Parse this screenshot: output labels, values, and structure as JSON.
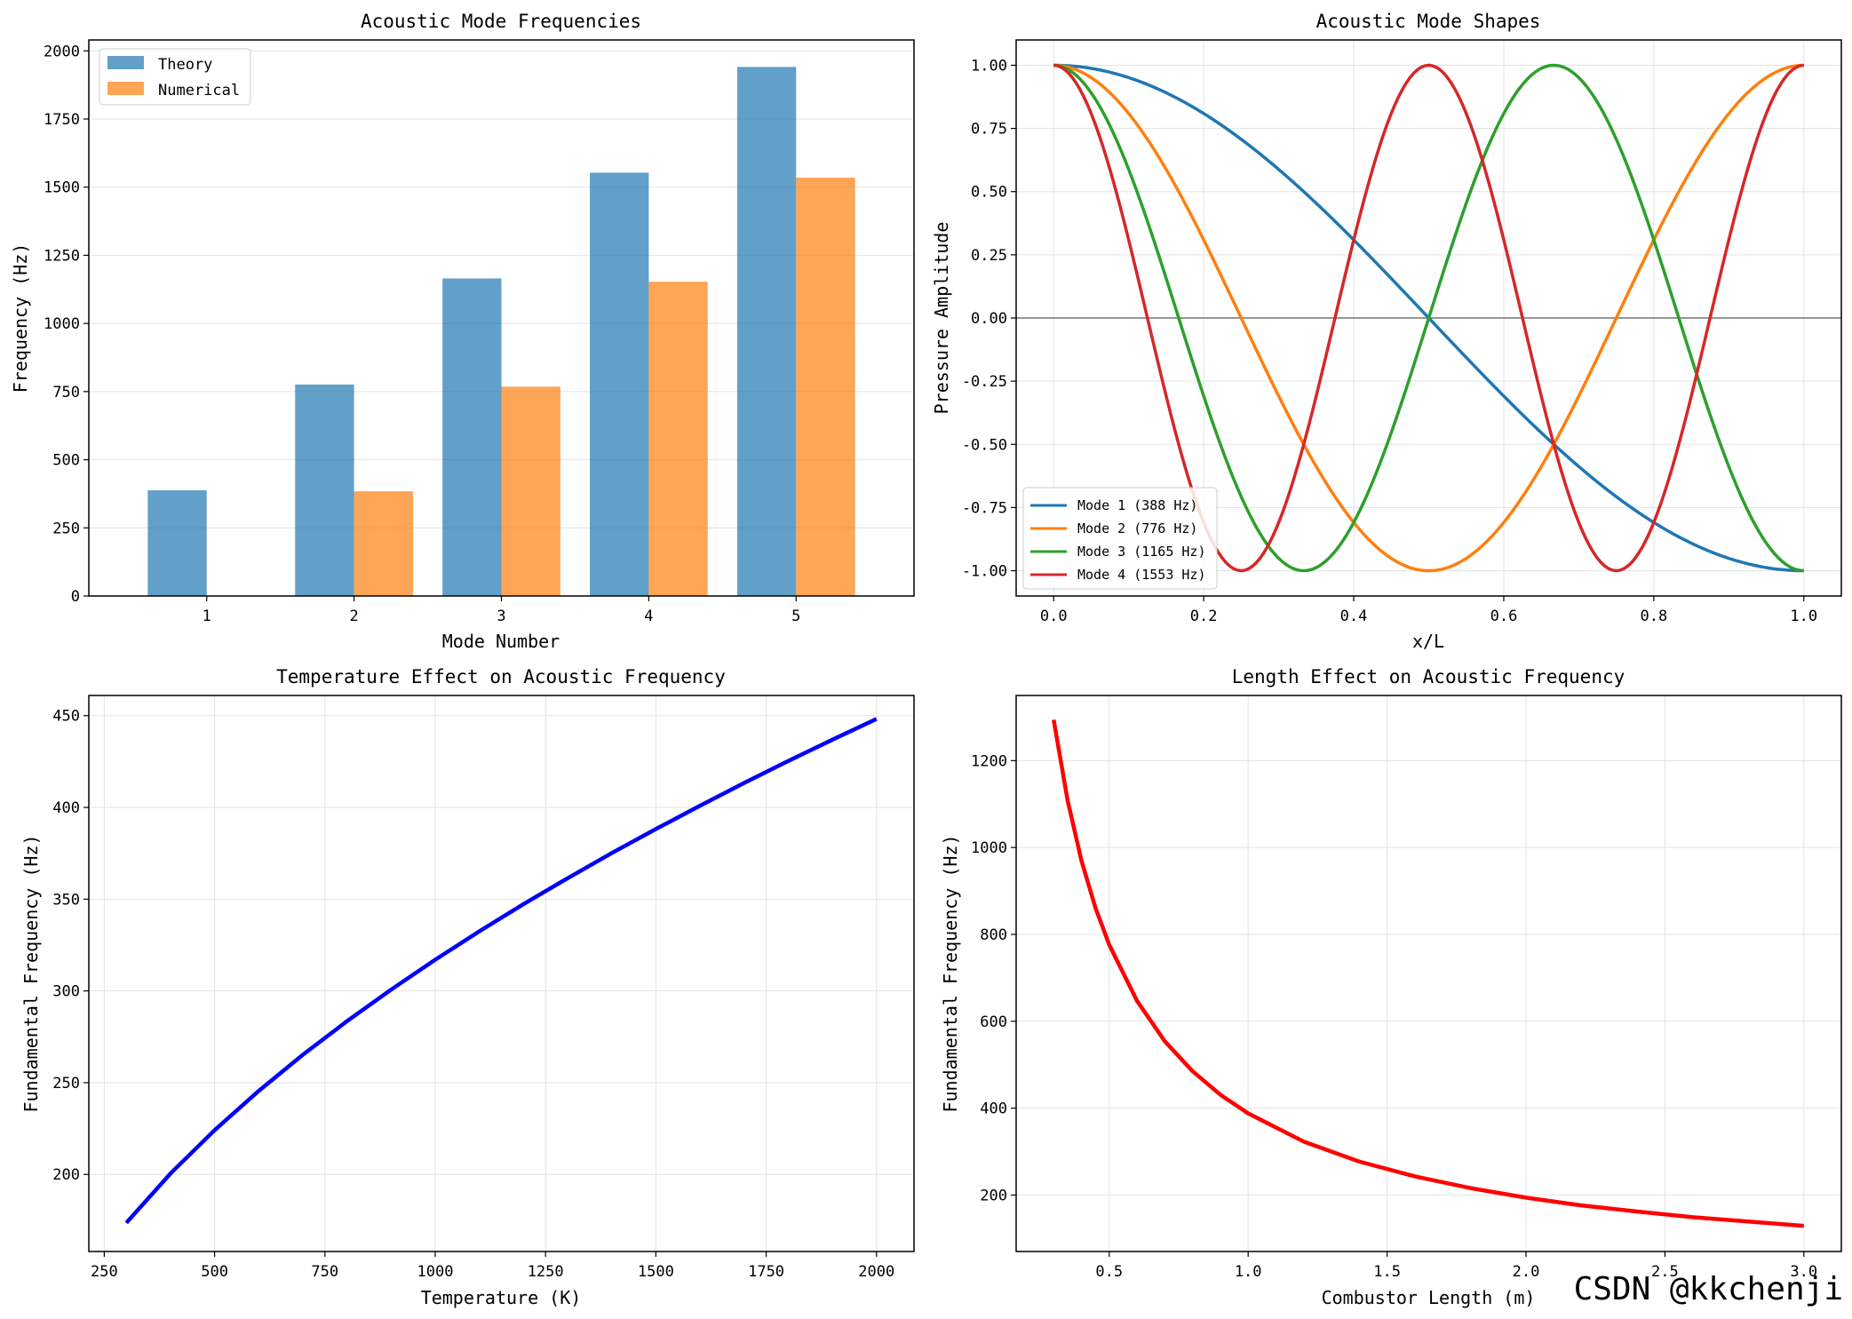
{
  "watermark": "CSDN @kkchenji",
  "chart_data": [
    {
      "type": "bar",
      "title": "Acoustic Mode Frequencies",
      "xlabel": "Mode Number",
      "ylabel": "Frequency (Hz)",
      "categories": [
        "1",
        "2",
        "3",
        "4",
        "5"
      ],
      "series": [
        {
          "name": "Theory",
          "values": [
            388,
            776,
            1165,
            1553,
            1941
          ],
          "color": "#1f77b4"
        },
        {
          "name": "Numerical",
          "values": [
            0,
            384,
            768,
            1153,
            1535
          ],
          "color": "#ff7f0e"
        }
      ],
      "ylim": [
        0,
        2040
      ],
      "yticks": [
        0,
        250,
        500,
        750,
        1000,
        1250,
        1500,
        1750,
        2000
      ],
      "ytick_labels": [
        "0",
        "250",
        "500",
        "750",
        "1000",
        "1250",
        "1500",
        "1750",
        "2000"
      ],
      "legend": "top-left",
      "grid": true
    },
    {
      "type": "line",
      "title": "Acoustic Mode Shapes",
      "xlabel": "x/L",
      "ylabel": "Pressure Amplitude",
      "xlim": [
        -0.05,
        1.05
      ],
      "ylim": [
        -1.1,
        1.1
      ],
      "xticks": [
        0.0,
        0.2,
        0.4,
        0.6,
        0.8,
        1.0
      ],
      "xtick_labels": [
        "0.0",
        "0.2",
        "0.4",
        "0.6",
        "0.8",
        "1.0"
      ],
      "yticks": [
        1.0,
        0.75,
        0.5,
        0.25,
        0.0,
        -0.25,
        -0.5,
        -0.75,
        -1.0
      ],
      "ytick_labels": [
        "1.00",
        "0.75",
        "0.50",
        "0.25",
        "0.00",
        "-0.25",
        "-0.50",
        "-0.75",
        "-1.00"
      ],
      "series": [
        {
          "name": "Mode 1 (388 Hz)",
          "mode": 1,
          "formula": "cos(n*pi*x)",
          "color": "#1f77b4"
        },
        {
          "name": "Mode 2 (776 Hz)",
          "mode": 2,
          "formula": "cos(n*pi*x)",
          "color": "#ff7f0e"
        },
        {
          "name": "Mode 3 (1165 Hz)",
          "mode": 3,
          "formula": "cos(n*pi*x)",
          "color": "#2ca02c"
        },
        {
          "name": "Mode 4 (1553 Hz)",
          "mode": 4,
          "formula": "cos(n*pi*x)",
          "color": "#d62728"
        }
      ],
      "hline": 0,
      "legend": "bottom-left",
      "grid": true
    },
    {
      "type": "line",
      "title": "Temperature Effect on Acoustic Frequency",
      "xlabel": "Temperature (K)",
      "ylabel": "Fundamental Frequency (Hz)",
      "xlim": [
        215,
        2085
      ],
      "ylim": [
        158,
        461
      ],
      "xticks": [
        250,
        500,
        750,
        1000,
        1250,
        1500,
        1750,
        2000
      ],
      "xtick_labels": [
        "250",
        "500",
        "750",
        "1000",
        "1250",
        "1500",
        "1750",
        "2000"
      ],
      "yticks": [
        200,
        250,
        300,
        350,
        400,
        450
      ],
      "ytick_labels": [
        "200",
        "250",
        "300",
        "350",
        "400",
        "450"
      ],
      "series": [
        {
          "name": "fundamental",
          "x": [
            300,
            400,
            500,
            600,
            700,
            800,
            900,
            1000,
            1100,
            1200,
            1300,
            1400,
            1500,
            1600,
            1700,
            1800,
            1900,
            2000
          ],
          "y": [
            173.6,
            200.5,
            224.1,
            245.5,
            265.2,
            283.5,
            300.7,
            317.0,
            332.5,
            347.3,
            361.4,
            375.1,
            388.2,
            400.9,
            413.3,
            425.3,
            436.9,
            448.2
          ],
          "color": "#0000ff"
        }
      ],
      "grid": true
    },
    {
      "type": "line",
      "title": "Length Effect on Acoustic Frequency",
      "xlabel": "Combustor Length (m)",
      "ylabel": "Fundamental Frequency (Hz)",
      "xlim": [
        0.165,
        3.135
      ],
      "ylim": [
        70,
        1350
      ],
      "xticks": [
        0.5,
        1.0,
        1.5,
        2.0,
        2.5,
        3.0
      ],
      "xtick_labels": [
        "0.5",
        "1.0",
        "1.5",
        "2.0",
        "2.5",
        "3.0"
      ],
      "yticks": [
        200,
        400,
        600,
        800,
        1000,
        1200
      ],
      "ytick_labels": [
        "200",
        "400",
        "600",
        "800",
        "1000",
        "1200"
      ],
      "series": [
        {
          "name": "fundamental",
          "x": [
            0.3,
            0.35,
            0.4,
            0.45,
            0.5,
            0.6,
            0.7,
            0.8,
            0.9,
            1.0,
            1.2,
            1.4,
            1.6,
            1.8,
            2.0,
            2.2,
            2.4,
            2.6,
            2.8,
            3.0
          ],
          "y": [
            1294,
            1109,
            970,
            862,
            776,
            647,
            554,
            485,
            431,
            388,
            323,
            277,
            243,
            216,
            194,
            176,
            162,
            149,
            139,
            129
          ],
          "color": "#ff0000"
        }
      ],
      "grid": true
    }
  ]
}
